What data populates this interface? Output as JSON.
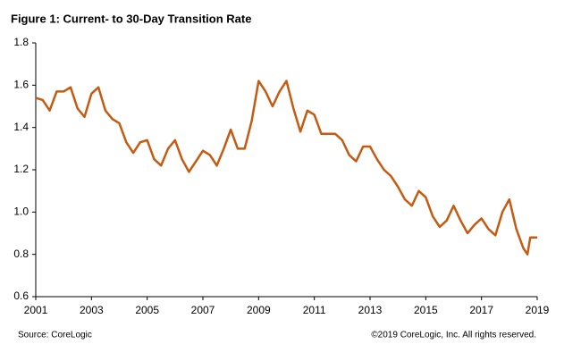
{
  "chart_data": {
    "type": "line",
    "title": "Figure 1: Current- to 30-Day Transition Rate",
    "source": "Source: CoreLogic",
    "copyright": "©2019 CoreLogic, Inc. All rights reserved.",
    "x": [
      2001.0,
      2001.25,
      2001.5,
      2001.75,
      2002.0,
      2002.25,
      2002.5,
      2002.75,
      2003.0,
      2003.25,
      2003.5,
      2003.75,
      2004.0,
      2004.25,
      2004.5,
      2004.75,
      2005.0,
      2005.25,
      2005.5,
      2005.75,
      2006.0,
      2006.25,
      2006.5,
      2006.75,
      2007.0,
      2007.25,
      2007.5,
      2007.75,
      2008.0,
      2008.25,
      2008.5,
      2008.75,
      2009.0,
      2009.25,
      2009.5,
      2009.75,
      2010.0,
      2010.25,
      2010.5,
      2010.75,
      2011.0,
      2011.25,
      2011.5,
      2011.75,
      2012.0,
      2012.25,
      2012.5,
      2012.75,
      2013.0,
      2013.25,
      2013.5,
      2013.75,
      2014.0,
      2014.25,
      2014.5,
      2014.75,
      2015.0,
      2015.25,
      2015.5,
      2015.75,
      2016.0,
      2016.25,
      2016.5,
      2016.75,
      2017.0,
      2017.25,
      2017.5,
      2017.75,
      2018.0,
      2018.25,
      2018.5,
      2018.65,
      2018.75,
      2019.0
    ],
    "series": [
      {
        "name": "Current- to 30-Day Transition Rate",
        "color": "#c55a11",
        "values": [
          1.54,
          1.53,
          1.48,
          1.57,
          1.57,
          1.59,
          1.49,
          1.45,
          1.56,
          1.59,
          1.48,
          1.44,
          1.42,
          1.33,
          1.28,
          1.33,
          1.34,
          1.25,
          1.22,
          1.3,
          1.34,
          1.25,
          1.19,
          1.24,
          1.29,
          1.27,
          1.22,
          1.3,
          1.39,
          1.3,
          1.3,
          1.43,
          1.62,
          1.57,
          1.5,
          1.57,
          1.62,
          1.49,
          1.38,
          1.48,
          1.46,
          1.37,
          1.37,
          1.37,
          1.34,
          1.27,
          1.24,
          1.31,
          1.31,
          1.25,
          1.2,
          1.17,
          1.12,
          1.06,
          1.03,
          1.1,
          1.07,
          0.98,
          0.93,
          0.96,
          1.03,
          0.96,
          0.9,
          0.94,
          0.97,
          0.92,
          0.89,
          1.0,
          1.06,
          0.92,
          0.83,
          0.8,
          0.88,
          0.88
        ]
      }
    ],
    "xlim": [
      2001,
      2019
    ],
    "xticks": [
      2001,
      2003,
      2005,
      2007,
      2009,
      2011,
      2013,
      2015,
      2017,
      2019
    ],
    "ylim": [
      0.6,
      1.8
    ],
    "yticks": [
      0.6,
      0.8,
      {
        "value": 1,
        "label": "1.0"
      },
      1.2,
      1.4,
      1.6,
      1.8
    ],
    "grid": false
  }
}
